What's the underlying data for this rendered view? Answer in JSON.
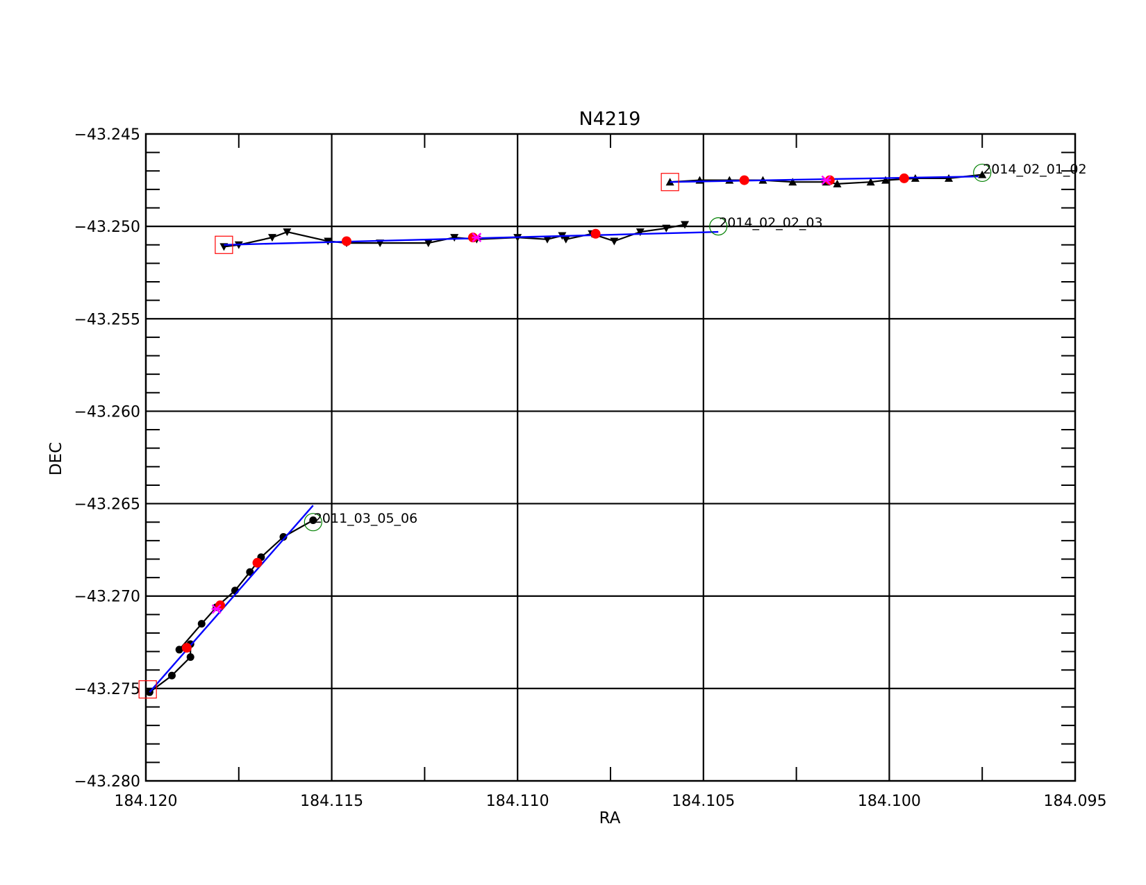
{
  "chart_data": {
    "type": "line",
    "title": "N4219",
    "xlabel": "RA",
    "ylabel": "DEC",
    "xlim": [
      184.12,
      184.095
    ],
    "ylim": [
      -43.28,
      -43.245
    ],
    "x_reversed": true,
    "xticks": [
      184.12,
      184.115,
      184.11,
      184.105,
      184.1,
      184.095
    ],
    "xtick_labels": [
      "184.120",
      "184.115",
      "184.110",
      "184.105",
      "184.100",
      "184.095"
    ],
    "yticks": [
      -43.245,
      -43.25,
      -43.255,
      -43.26,
      -43.265,
      -43.27,
      -43.275,
      -43.28
    ],
    "ytick_labels": [
      "−43.245",
      "−43.250",
      "−43.255",
      "−43.260",
      "−43.265",
      "−43.270",
      "−43.275",
      "−43.280"
    ],
    "grid": true,
    "colors": {
      "track": "#000000",
      "fit": "#0000ff",
      "start_marker": "#ff0000",
      "end_marker": "#008000",
      "sample_point": "#ff0000",
      "midpoint": "#ff00ff"
    },
    "tracks": [
      {
        "label": "2011_03_05_06",
        "marker": "circle",
        "points": [
          [
            184.1199,
            -43.2752
          ],
          [
            184.1193,
            -43.2743
          ],
          [
            184.1188,
            -43.2733
          ],
          [
            184.1188,
            -43.2726
          ],
          [
            184.1191,
            -43.2729
          ],
          [
            184.1185,
            -43.2715
          ],
          [
            184.1181,
            -43.2706
          ],
          [
            184.1176,
            -43.2697
          ],
          [
            184.1172,
            -43.2687
          ],
          [
            184.1169,
            -43.2679
          ],
          [
            184.1163,
            -43.2668
          ],
          [
            184.1155,
            -43.2659
          ]
        ],
        "fit": [
          [
            184.1199,
            -43.2752
          ],
          [
            184.1155,
            -43.2651
          ]
        ],
        "start": [
          184.11995,
          -43.27505
        ],
        "end": [
          184.1155,
          -43.266
        ],
        "samples": [
          [
            184.1189,
            -43.2728
          ],
          [
            184.118,
            -43.2705
          ],
          [
            184.117,
            -43.2682
          ]
        ],
        "midpoint": [
          184.1181,
          -43.2707
        ]
      },
      {
        "label": "2014_02_02_03",
        "marker": "triangle-down",
        "points": [
          [
            184.1179,
            -43.2511
          ],
          [
            184.1175,
            -43.251
          ],
          [
            184.1166,
            -43.2506
          ],
          [
            184.1162,
            -43.2503
          ],
          [
            184.1151,
            -43.2508
          ],
          [
            184.1146,
            -43.2509
          ],
          [
            184.1137,
            -43.2509
          ],
          [
            184.1124,
            -43.2509
          ],
          [
            184.1117,
            -43.2506
          ],
          [
            184.1111,
            -43.2507
          ],
          [
            184.11,
            -43.2506
          ],
          [
            184.1092,
            -43.2507
          ],
          [
            184.1088,
            -43.2505
          ],
          [
            184.1087,
            -43.2507
          ],
          [
            184.108,
            -43.2504
          ],
          [
            184.1074,
            -43.2508
          ],
          [
            184.1067,
            -43.2503
          ],
          [
            184.106,
            -43.2501
          ],
          [
            184.1055,
            -43.2499
          ]
        ],
        "fit": [
          [
            184.1179,
            -43.251
          ],
          [
            184.1046,
            -43.2503
          ]
        ],
        "start": [
          184.1179,
          -43.251
        ],
        "end": [
          184.1046,
          -43.25
        ],
        "samples": [
          [
            184.1146,
            -43.2508
          ],
          [
            184.1112,
            -43.2506
          ],
          [
            184.1079,
            -43.2504
          ]
        ],
        "midpoint": [
          184.1111,
          -43.2506
        ]
      },
      {
        "label": "2014_02_01_02",
        "marker": "triangle-up",
        "points": [
          [
            184.1059,
            -43.2476
          ],
          [
            184.1051,
            -43.2475
          ],
          [
            184.1043,
            -43.2475
          ],
          [
            184.1034,
            -43.2475
          ],
          [
            184.1026,
            -43.2476
          ],
          [
            184.1017,
            -43.2476
          ],
          [
            184.1014,
            -43.2477
          ],
          [
            184.1005,
            -43.2476
          ],
          [
            184.1001,
            -43.2475
          ],
          [
            184.0993,
            -43.2474
          ],
          [
            184.0984,
            -43.2474
          ],
          [
            184.0975,
            -43.2472
          ]
        ],
        "fit": [
          [
            184.1059,
            -43.2476
          ],
          [
            184.0976,
            -43.2473
          ]
        ],
        "start": [
          184.1059,
          -43.2476
        ],
        "end": [
          184.0975,
          -43.2471
        ],
        "samples": [
          [
            184.1039,
            -43.2475
          ],
          [
            184.1016,
            -43.2475
          ],
          [
            184.0996,
            -43.2474
          ]
        ],
        "midpoint": [
          184.1017,
          -43.2475
        ]
      }
    ]
  }
}
